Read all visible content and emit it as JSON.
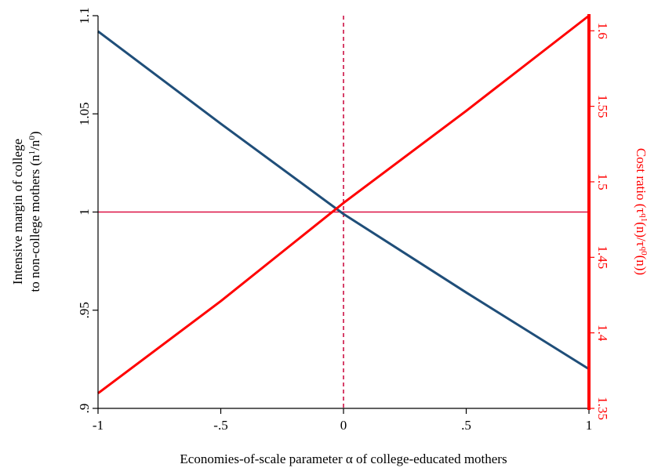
{
  "chart_data": {
    "type": "line",
    "x_axis": {
      "label": "Economies-of-scale parameter α of college-educated mothers",
      "range": [
        -1,
        1
      ],
      "ticks": [
        -1,
        -0.5,
        0,
        0.5,
        1
      ],
      "tick_labels": [
        "-1",
        "-.5",
        "0",
        ".5",
        "1"
      ]
    },
    "y_left": {
      "label_line1": "Intensive margin of college",
      "label_line2": "to non-college mothers (n¹/n⁰)",
      "range": [
        0.9,
        1.1
      ],
      "ticks": [
        0.9,
        0.95,
        1.0,
        1.05,
        1.1
      ],
      "tick_labels": [
        ".9",
        ".95",
        "1",
        "1.05",
        "1.1"
      ],
      "color": "#000000"
    },
    "y_right": {
      "label": "Cost ratio (τ^q1(n)/τ^q0(n))",
      "range": [
        1.35,
        1.61
      ],
      "ticks": [
        1.35,
        1.4,
        1.45,
        1.5,
        1.55,
        1.6
      ],
      "tick_labels": [
        "1.35",
        "1.4",
        "1.45",
        "1.5",
        "1.55",
        "1.6"
      ],
      "color": "#ff0000"
    },
    "series": [
      {
        "axis": "left",
        "color": "#1f4e79",
        "x": [
          -1,
          -0.5,
          0,
          0.5,
          1
        ],
        "y": [
          1.092,
          1.045,
          0.999,
          0.959,
          0.92
        ]
      },
      {
        "axis": "right",
        "color": "#ff0000",
        "x": [
          -1,
          -0.5,
          0,
          0.5,
          1
        ],
        "y": [
          1.36,
          1.421,
          1.486,
          1.547,
          1.61
        ]
      }
    ],
    "reference_lines": [
      {
        "type": "horizontal",
        "axis": "left",
        "value": 1,
        "color": "#dd1144",
        "style": "solid"
      },
      {
        "type": "vertical",
        "value": 0,
        "color": "#cc1144",
        "style": "dashed"
      }
    ],
    "grid": false,
    "legend": "none"
  }
}
